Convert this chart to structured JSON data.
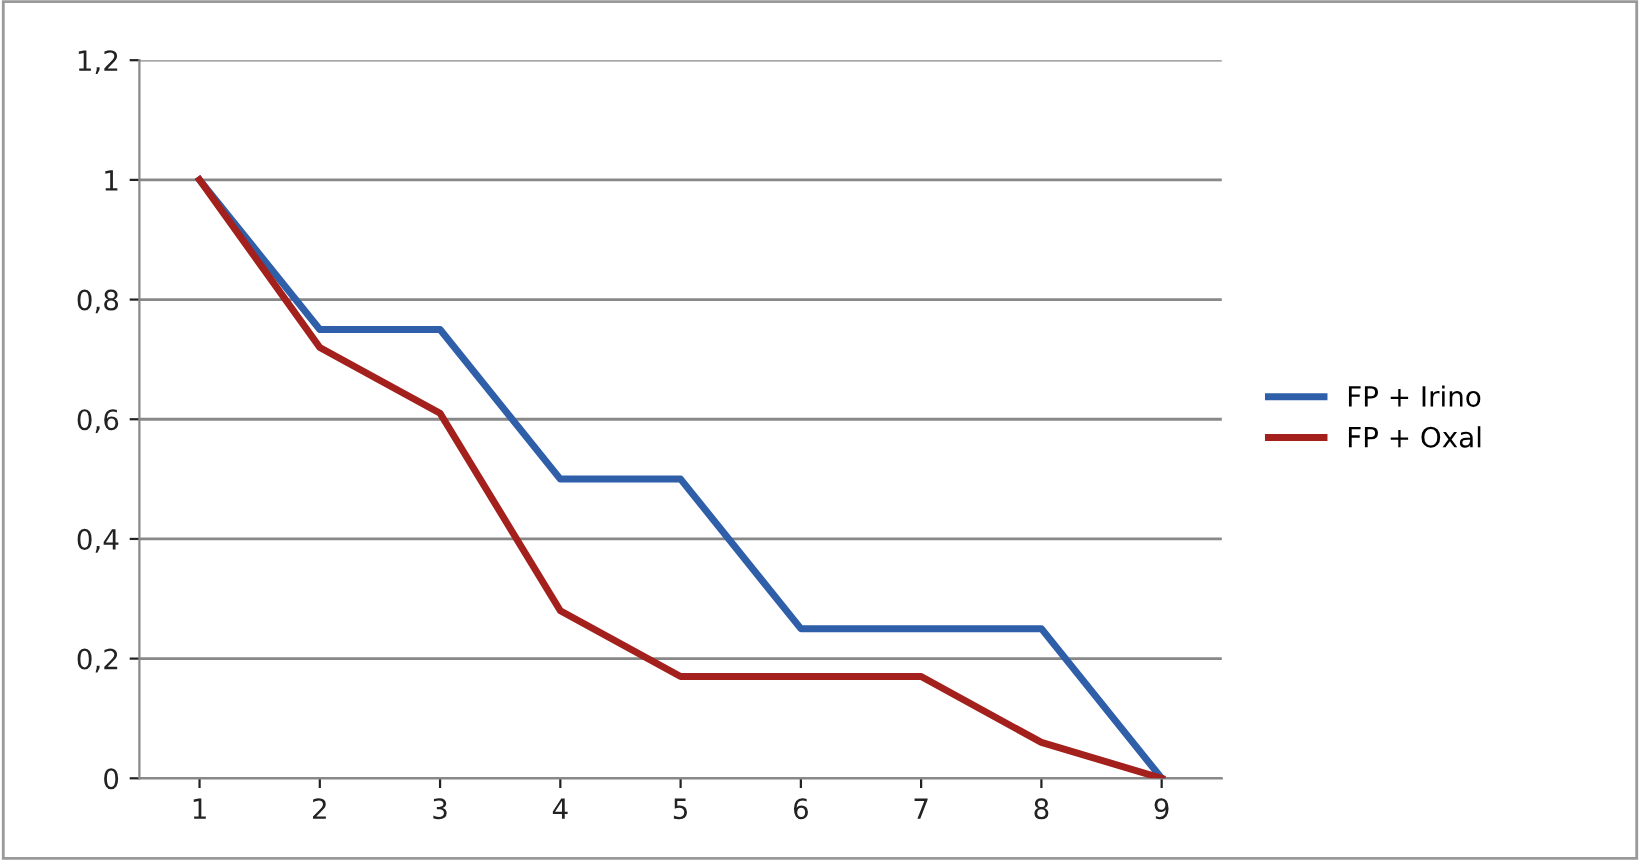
{
  "chart_data": {
    "type": "line",
    "categories": [
      "1",
      "2",
      "3",
      "4",
      "5",
      "6",
      "7",
      "8",
      "9"
    ],
    "series": [
      {
        "name": "FP + Irino",
        "color": "#2e5fa8",
        "values": [
          1,
          0.75,
          0.75,
          0.5,
          0.5,
          0.25,
          0.25,
          0.25,
          0
        ]
      },
      {
        "name": "FP + Oxal",
        "color": "#a3201c",
        "values": [
          1,
          0.72,
          0.61,
          0.28,
          0.17,
          0.17,
          0.17,
          0.06,
          0
        ]
      }
    ],
    "ylim": [
      0,
      1.2
    ],
    "yticks": [
      0,
      {
        "value": 0.2,
        "label": "0,2"
      },
      {
        "value": 0.4,
        "label": "0,4"
      },
      {
        "value": 0.6,
        "label": "0,6"
      },
      {
        "value": 0.8,
        "label": "0,8"
      },
      1,
      {
        "value": 1.2,
        "label": "1,2"
      }
    ],
    "grid": "y",
    "legend": "right",
    "marker": "none",
    "line_style": "solid"
  }
}
